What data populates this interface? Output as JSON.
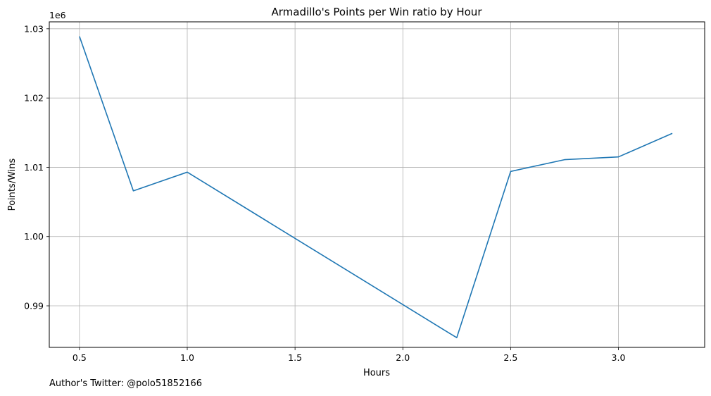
{
  "chart_data": {
    "type": "line",
    "title": "Armadillo's Points per Win ratio by Hour",
    "xlabel": "Hours",
    "ylabel": "Points/Wins",
    "offset_text": "1e6",
    "grid": true,
    "xlim": [
      0.36,
      3.4
    ],
    "ylim": [
      984000,
      1031000
    ],
    "xticks": [
      0.5,
      1.0,
      1.5,
      2.0,
      2.5,
      3.0
    ],
    "xtick_labels": [
      "0.5",
      "1.0",
      "1.5",
      "2.0",
      "2.5",
      "3.0"
    ],
    "yticks": [
      990000,
      1000000,
      1010000,
      1020000,
      1030000
    ],
    "ytick_labels": [
      "0.99",
      "1.00",
      "1.01",
      "1.02",
      "1.03"
    ],
    "x": [
      0.5,
      0.75,
      1.0,
      2.25,
      2.5,
      2.75,
      3.0,
      3.25
    ],
    "series": [
      {
        "values": [
          1028900,
          1006600,
          1009300,
          985400,
          1009400,
          1011100,
          1011500,
          1014900
        ],
        "color": "#1f77b4"
      }
    ]
  },
  "footer_text": "Author's Twitter: @polo51852166"
}
